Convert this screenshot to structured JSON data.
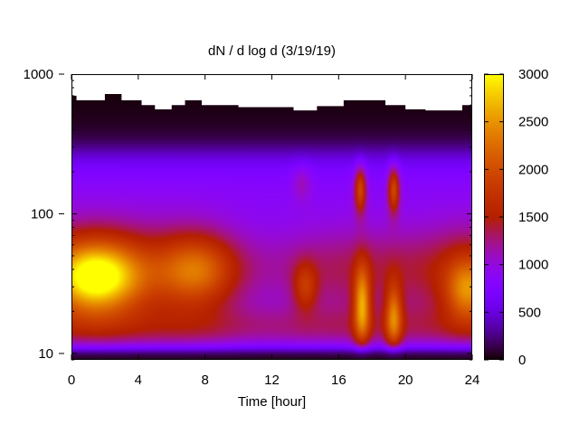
{
  "chart_data": {
    "type": "heatmap",
    "title": "dN / d log d (3/19/19)",
    "xlabel": "Time [hour]",
    "ylabel": "",
    "xlim": [
      0,
      24
    ],
    "ylim": [
      9,
      1000
    ],
    "y_scale": "log",
    "x_ticks": [
      "0",
      "4",
      "8",
      "12",
      "16",
      "20",
      "24"
    ],
    "y_ticks": [
      "10",
      "100",
      "1000"
    ],
    "colorbar": {
      "range": [
        0,
        3000
      ],
      "ticks": [
        "0",
        "500",
        "1000",
        "1500",
        "2000",
        "2500",
        "3000"
      ],
      "palette": "black-purple-red-orange-yellow"
    },
    "grid": false,
    "upper_size_limit_nm": [
      [
        0,
        700
      ],
      [
        0.3,
        650
      ],
      [
        2,
        720
      ],
      [
        3,
        650
      ],
      [
        4.2,
        600
      ],
      [
        5,
        560
      ],
      [
        6,
        600
      ],
      [
        6.8,
        650
      ],
      [
        7.8,
        600
      ],
      [
        10,
        580
      ],
      [
        12,
        580
      ],
      [
        13.3,
        550
      ],
      [
        14.7,
        590
      ],
      [
        16.3,
        650
      ],
      [
        18.8,
        600
      ],
      [
        20,
        560
      ],
      [
        21.2,
        550
      ],
      [
        23.4,
        600
      ],
      [
        24,
        600
      ]
    ],
    "features": [
      {
        "x": 1.5,
        "y": 35,
        "value": 2700
      },
      {
        "x": 7.5,
        "y": 40,
        "value": 2000
      },
      {
        "x": 14,
        "y": 30,
        "value": 1800
      },
      {
        "x": 17.4,
        "y": 22,
        "value": 2400
      },
      {
        "x": 17.3,
        "y": 150,
        "value": 1800
      },
      {
        "x": 19.3,
        "y": 18,
        "value": 2200
      },
      {
        "x": 19.3,
        "y": 150,
        "value": 1800
      },
      {
        "x": 23.7,
        "y": 28,
        "value": 2500
      }
    ]
  }
}
